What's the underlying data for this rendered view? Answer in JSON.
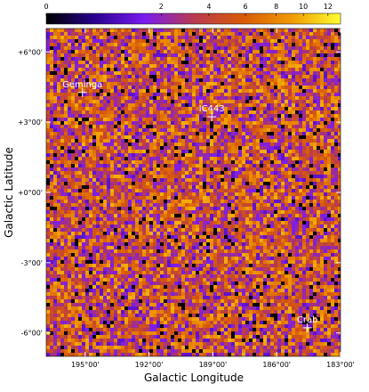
{
  "chart_data": {
    "type": "skymap",
    "xlabel": "Galactic Longitude",
    "ylabel": "Galactic Latitude",
    "xlim": [
      196.83,
      183
    ],
    "ylim": [
      -7,
      7
    ],
    "xticks": [
      {
        "value": 195,
        "label": "195°00'"
      },
      {
        "value": 192,
        "label": "192°00'"
      },
      {
        "value": 189,
        "label": "189°00'"
      },
      {
        "value": 186,
        "label": "186°00'"
      },
      {
        "value": 183,
        "label": "183°00'"
      }
    ],
    "yticks": [
      {
        "value": 6,
        "label": "+6°00'"
      },
      {
        "value": 3,
        "label": "+3°00'"
      },
      {
        "value": 0,
        "label": "+0°00'"
      },
      {
        "value": -3,
        "label": "-3°00'"
      },
      {
        "value": -6,
        "label": "-6°00'"
      }
    ],
    "colorbar": {
      "lim": [
        0,
        13.1
      ],
      "scale": "sqrt",
      "ticks": [
        0,
        2,
        4,
        6,
        8,
        10,
        12
      ],
      "colors": [
        "#000000",
        "#2a0090",
        "#7a1cf0",
        "#b83a50",
        "#d85a08",
        "#f09a00",
        "#ffff30"
      ]
    },
    "sources": [
      {
        "name": "Geminga",
        "x": 195.13,
        "y": 4.27
      },
      {
        "name": "IC443",
        "x": 189.05,
        "y": 3.23
      },
      {
        "name": "Crab",
        "x": 184.56,
        "y": -5.78
      }
    ]
  }
}
